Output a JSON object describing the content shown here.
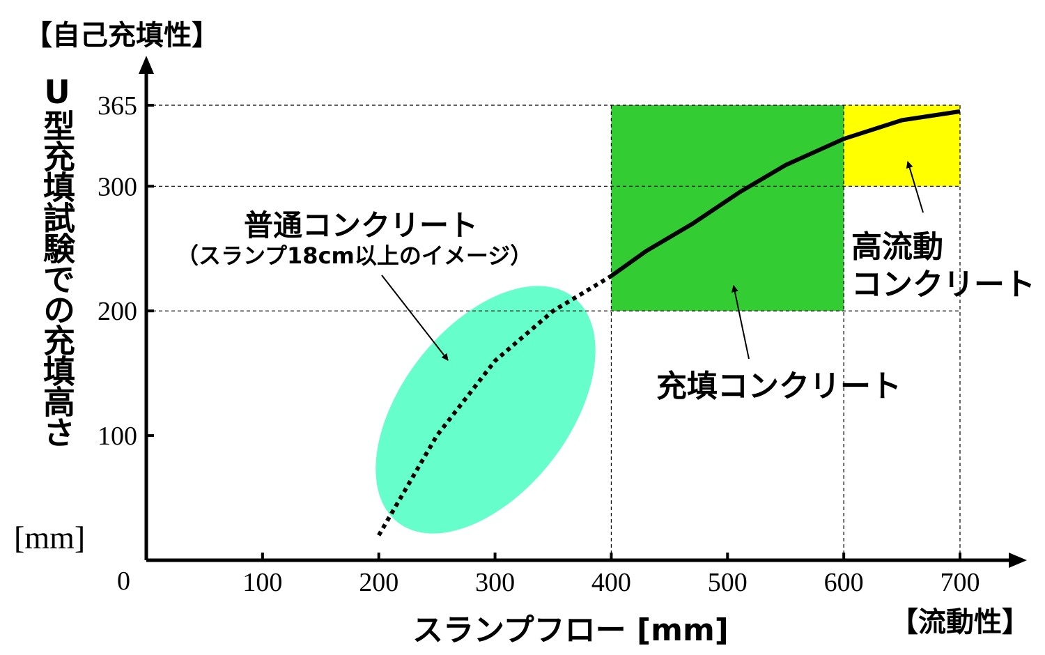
{
  "header": {
    "y_bracket_label": "【自己充填性】",
    "x_bracket_label": "【流動性】"
  },
  "chart_data": {
    "type": "line",
    "xlabel": "スランプフロー [mm]",
    "ylabel": "U型充填試験での充填高さ",
    "yunit": "[mm]",
    "x_origin_label": "0",
    "xlim": [
      0,
      740
    ],
    "ylim": [
      0,
      390
    ],
    "x_ticks": [
      "100",
      "200",
      "300",
      "400",
      "500",
      "600",
      "700"
    ],
    "y_ticks": [
      "100",
      "200",
      "300",
      "365"
    ],
    "grid": "dashed reference lines at x=400,600,700 and y=200,300,365",
    "series": [
      {
        "style": "dotted",
        "points": [
          [
            200,
            20
          ],
          [
            250,
            100
          ],
          [
            300,
            160
          ],
          [
            350,
            200
          ],
          [
            400,
            228
          ]
        ]
      },
      {
        "style": "solid",
        "points": [
          [
            400,
            228
          ],
          [
            430,
            248
          ],
          [
            470,
            270
          ],
          [
            510,
            295
          ],
          [
            550,
            317
          ],
          [
            600,
            338
          ],
          [
            650,
            353
          ],
          [
            700,
            360
          ]
        ]
      }
    ],
    "regions": [
      {
        "x": [
          400,
          600
        ],
        "y": [
          200,
          365
        ],
        "color": "#33cc33"
      },
      {
        "x": [
          600,
          700
        ],
        "y": [
          300,
          365
        ],
        "color": "#ffff00"
      },
      {
        "ellipse_center": [
          300,
          125
        ],
        "color": "#66ffcc"
      }
    ],
    "annotations": {
      "normal_line1": "普通コンクリート",
      "normal_line2": "（スランプ18cm以上のイメージ）",
      "filling": "充填コンクリート",
      "high_line1": "高流動",
      "high_line2": "コンクリート"
    }
  }
}
